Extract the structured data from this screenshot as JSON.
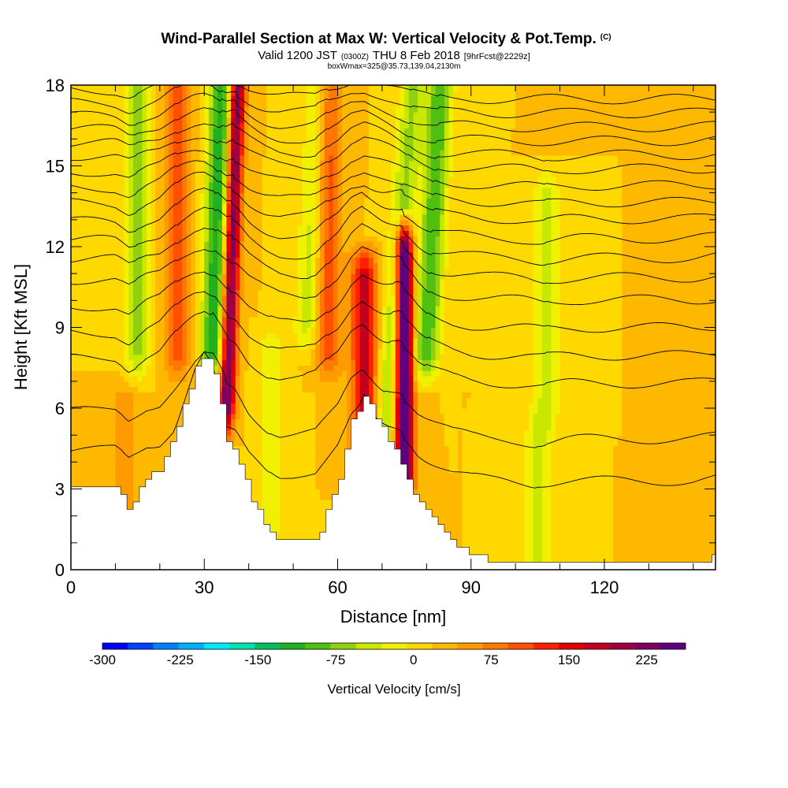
{
  "chart_data": {
    "type": "heatmap",
    "title": "Wind-Parallel Section at Max W: Vertical Velocity & Pot.Temp.",
    "title_mark": "(C)",
    "subtitle": {
      "part1": "Valid 1200 JST",
      "part2": "(0300Z)",
      "part3": "THU 8 Feb 2018",
      "part4": "[9hrFcst@2229z]"
    },
    "subtitle2": "boxWmax=325@35.73,139.04,2130m",
    "xlabel": "Distance [nm]",
    "ylabel": "Height [Kft MSL]",
    "xlim": [
      0,
      145
    ],
    "ylim": [
      0,
      18
    ],
    "xticks": [
      "0",
      "30",
      "60",
      "90",
      "120"
    ],
    "xtick_values": [
      0,
      30,
      60,
      90,
      120
    ],
    "yticks": [
      "0",
      "3",
      "6",
      "9",
      "12",
      "15",
      "18"
    ],
    "ytick_values": [
      0,
      3,
      6,
      9,
      12,
      15,
      18
    ],
    "grid": false,
    "colorbar": {
      "label": "Vertical Velocity [cm/s]",
      "min": -300,
      "max": 262.5,
      "step": 25,
      "tick_labels": [
        "-300",
        "-225",
        "-150",
        "-75",
        "0",
        "75",
        "150",
        "225"
      ],
      "tick_values": [
        -300,
        -225,
        -150,
        -75,
        0,
        75,
        150,
        225
      ],
      "colors": [
        "#0000ff",
        "#0040ff",
        "#0080ff",
        "#00b0ff",
        "#00e8ff",
        "#00e0b0",
        "#00c060",
        "#20b020",
        "#50c010",
        "#90d010",
        "#c8e800",
        "#f0f000",
        "#ffd800",
        "#ffb800",
        "#ff9a00",
        "#ff7800",
        "#ff5000",
        "#ff2000",
        "#e00000",
        "#c00020",
        "#a00040",
        "#800060",
        "#600080"
      ]
    },
    "terrain_profile": {
      "x": [
        0,
        10,
        13,
        17,
        20,
        24,
        28,
        30,
        32,
        35,
        37,
        40,
        44,
        47,
        50,
        55,
        60,
        63,
        66,
        70,
        74,
        78,
        82,
        86,
        90,
        94,
        100,
        110,
        120,
        130,
        140,
        145
      ],
      "height": [
        3,
        3,
        2.2,
        3.5,
        3.8,
        5.5,
        7.5,
        8.1,
        7.6,
        4.8,
        4.5,
        2.8,
        1.6,
        1.0,
        1.0,
        1.1,
        3.2,
        5.5,
        6.5,
        5.2,
        4.0,
        2.5,
        1.8,
        1.0,
        0.6,
        0.4,
        0.3,
        0.3,
        0.3,
        0.3,
        0.3,
        0.5
      ]
    },
    "velocity_features": [
      {
        "x": 35,
        "y_bottom": 6,
        "y_top": 18,
        "w": 235,
        "tilt": 0.2
      },
      {
        "x": 32,
        "y_bottom": 8,
        "y_top": 18,
        "w": -150,
        "tilt": 0.2
      },
      {
        "x": 75,
        "y_bottom": 3,
        "y_top": 12,
        "w": 325,
        "tilt": 0
      },
      {
        "x": 66,
        "y_bottom": 4,
        "y_top": 11,
        "w": 160,
        "tilt": 0
      },
      {
        "x": 70,
        "y_bottom": 4,
        "y_top": 18,
        "w": -80,
        "tilt": 0.5
      },
      {
        "x": 58,
        "y_bottom": 8,
        "y_top": 18,
        "w": 90,
        "tilt": 0
      },
      {
        "x": 53,
        "y_bottom": 9,
        "y_top": 18,
        "w": -60,
        "tilt": 0.3
      },
      {
        "x": 80,
        "y_bottom": 8,
        "y_top": 18,
        "w": -120,
        "tilt": 0.3
      },
      {
        "x": 24,
        "y_bottom": 8,
        "y_top": 18,
        "w": 90,
        "tilt": 0
      },
      {
        "x": 15,
        "y_bottom": 8,
        "y_top": 18,
        "w": -80,
        "tilt": 0
      },
      {
        "x": 107,
        "y_bottom": 6,
        "y_top": 14,
        "w": -60,
        "tilt": 0
      },
      {
        "x": 105,
        "y_bottom": 0,
        "y_top": 5,
        "w": -60,
        "tilt": 0
      },
      {
        "x": 45,
        "y_bottom": 2,
        "y_top": 8,
        "w": -50,
        "tilt": 0
      },
      {
        "x": 12,
        "y_bottom": 2,
        "y_top": 6,
        "w": 50,
        "tilt": 0
      }
    ],
    "theta_contour_base_heights": [
      4,
      5.5,
      7.5,
      8.5,
      9.5,
      10.5,
      11.3,
      12.0,
      12.7,
      13.4,
      14.0,
      14.6,
      15.2,
      15.7,
      16.2,
      16.7,
      17.2,
      17.7
    ]
  }
}
